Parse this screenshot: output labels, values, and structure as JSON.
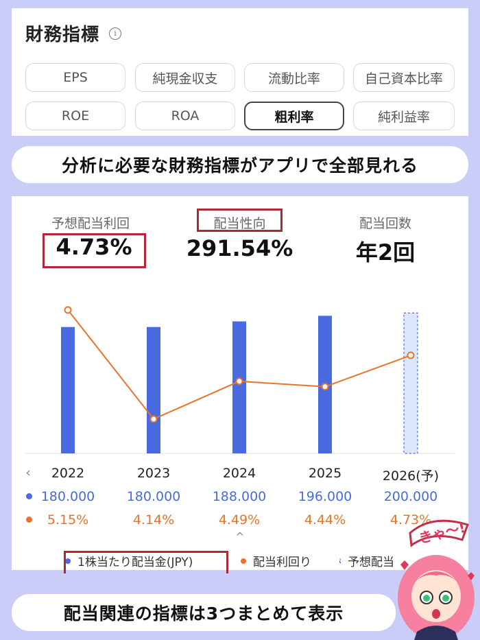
{
  "metrics_panel": {
    "title": "財務指標",
    "chips": [
      {
        "label": "EPS",
        "active": false
      },
      {
        "label": "純現金収支",
        "active": false
      },
      {
        "label": "流動比率",
        "active": false
      },
      {
        "label": "自己資本比率",
        "active": false
      },
      {
        "label": "ROE",
        "active": false
      },
      {
        "label": "ROA",
        "active": false
      },
      {
        "label": "粗利率",
        "active": true
      },
      {
        "label": "純利益率",
        "active": false
      }
    ]
  },
  "banner_top": "分析に必要な財務指標がアプリで全部見れる",
  "dividend_panel": {
    "stats": [
      {
        "label": "予想配当利回",
        "value": "4.73%"
      },
      {
        "label": "配当性向",
        "value": "291.54%"
      },
      {
        "label": "配当回数",
        "value": "年2回"
      }
    ],
    "years": [
      "2022",
      "2023",
      "2024",
      "2025",
      "2026(予)"
    ],
    "dividends": [
      "180.000",
      "180.000",
      "188.000",
      "196.000",
      "200.000"
    ],
    "yields": [
      "5.15%",
      "4.14%",
      "4.49%",
      "4.44%",
      "4.73%"
    ],
    "legend": [
      "1株当たり配当金(JPY)",
      "配当利回り",
      "予想配当"
    ],
    "nav_left": "‹",
    "expand_icon": "^"
  },
  "chart_data": {
    "type": "bar+line",
    "categories": [
      "2022",
      "2023",
      "2024",
      "2025",
      "2026(予)"
    ],
    "series": [
      {
        "name": "1株当たり配当金(JPY)",
        "type": "bar",
        "values": [
          180,
          180,
          188,
          196,
          200
        ],
        "forecast_index": 4
      },
      {
        "name": "配当利回り",
        "type": "line",
        "values": [
          5.15,
          4.14,
          4.49,
          4.44,
          4.73
        ]
      }
    ],
    "colors": {
      "bar": "#4a6ae0",
      "line": "#e8732a",
      "forecast": "#dbe6fb"
    }
  },
  "banner_bottom": "配当関連の指標は3つまとめて表示",
  "sticker_text": "きゃ〜!"
}
